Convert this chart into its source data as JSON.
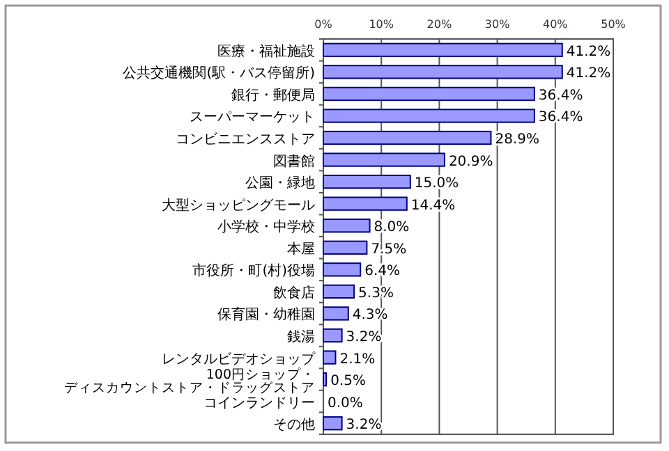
{
  "chart_data": {
    "type": "bar",
    "orientation": "horizontal",
    "categories": [
      "医療・福祉施設",
      "公共交通機関(駅・バス停留所)",
      "銀行・郵便局",
      "スーパーマーケット",
      "コンビニエンスストア",
      "図書館",
      "公園・緑地",
      "大型ショッピングモール",
      "小学校・中学校",
      "本屋",
      "市役所・町(村)役場",
      "飲食店",
      "保育園・幼稚園",
      "銭湯",
      "レンタルビデオショップ",
      "100円ショップ・ディスカウントストア・ドラッグストア",
      "コインランドリー",
      "その他"
    ],
    "values": [
      41.2,
      41.2,
      36.4,
      36.4,
      28.9,
      20.9,
      15.0,
      14.4,
      8.0,
      7.5,
      6.4,
      5.3,
      4.3,
      3.2,
      2.1,
      0.5,
      0.0,
      3.2
    ],
    "value_labels": [
      "41.2%",
      "41.2%",
      "36.4%",
      "36.4%",
      "28.9%",
      "20.9%",
      "15.0%",
      "14.4%",
      "8.0%",
      "7.5%",
      "6.4%",
      "5.3%",
      "4.3%",
      "3.2%",
      "2.1%",
      "0.5%",
      "0.0%",
      "3.2%"
    ],
    "color": "#9999ff",
    "xlim": [
      0,
      50
    ],
    "xticks": [
      {
        "value": 0,
        "label": "0%"
      },
      {
        "value": 10,
        "label": "10%"
      },
      {
        "value": 20,
        "label": "20%"
      },
      {
        "value": 30,
        "label": "30%"
      },
      {
        "value": 40,
        "label": "40%"
      },
      {
        "value": 50,
        "label": "50%"
      }
    ],
    "grid": "x"
  }
}
